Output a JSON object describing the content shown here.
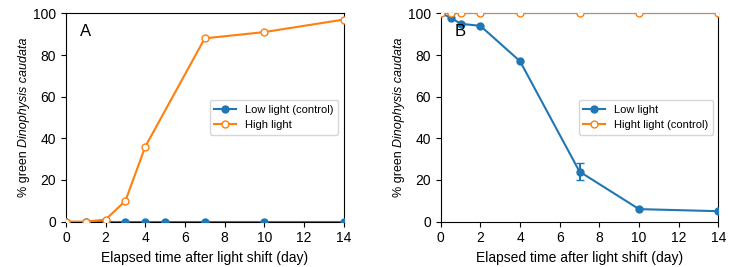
{
  "chart_data": [
    {
      "type": "line",
      "annotations": [
        "A"
      ],
      "xlabel": "Elapsed time after light shift (day)",
      "ylabel": [
        "% green ",
        "Dinophysis caudata"
      ],
      "xlim": [
        0,
        14
      ],
      "ylim": [
        0,
        100
      ],
      "xticks": [
        0,
        2,
        4,
        6,
        8,
        10,
        12,
        14
      ],
      "yticks": [
        0,
        20,
        40,
        60,
        80,
        100
      ],
      "legend": "center right",
      "series": [
        {
          "name": "Low light (control)",
          "marker": "filled_circle",
          "x": [
            0,
            1,
            2,
            3,
            4,
            5,
            7,
            10,
            14
          ],
          "values": [
            0,
            0,
            0,
            0,
            0,
            0,
            0,
            0,
            0
          ],
          "yerr": [
            null,
            null,
            null,
            null,
            null,
            null,
            null,
            null,
            null
          ]
        },
        {
          "name": "High light",
          "marker": "open_circle",
          "x": [
            0,
            1,
            2,
            3,
            4,
            7,
            10,
            14
          ],
          "values": [
            0,
            0,
            1,
            10,
            36,
            88,
            91,
            97
          ],
          "yerr": [
            null,
            null,
            null,
            null,
            null,
            null,
            null,
            null
          ]
        }
      ]
    },
    {
      "type": "line",
      "annotations": [
        "B"
      ],
      "xlabel": "Elapsed time after light shift (day)",
      "ylabel": [
        "% green ",
        "Dinophysis caudata"
      ],
      "xlim": [
        0,
        14
      ],
      "ylim": [
        0,
        100
      ],
      "xticks": [
        0,
        2,
        4,
        6,
        8,
        10,
        12,
        14
      ],
      "yticks": [
        0,
        20,
        40,
        60,
        80,
        100
      ],
      "legend": "center right",
      "series": [
        {
          "name": "Low light",
          "marker": "filled_circle",
          "x": [
            0,
            0.5,
            1,
            2,
            4,
            7,
            10,
            14
          ],
          "values": [
            100,
            98,
            95,
            94,
            77,
            24,
            6,
            5
          ],
          "yerr": [
            null,
            null,
            null,
            null,
            null,
            4,
            null,
            null
          ]
        },
        {
          "name": "Hight light (control)",
          "marker": "open_circle",
          "x": [
            0,
            0.5,
            1,
            2,
            4,
            7,
            10,
            14
          ],
          "values": [
            100,
            100,
            100,
            100,
            100,
            100,
            100,
            100
          ],
          "yerr": [
            null,
            null,
            null,
            null,
            null,
            null,
            null,
            null
          ]
        }
      ]
    }
  ]
}
